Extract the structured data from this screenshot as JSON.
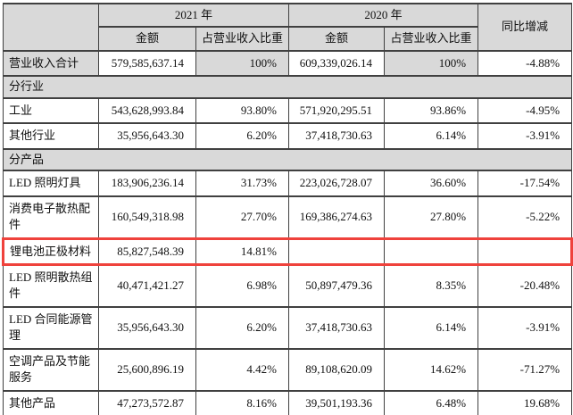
{
  "table": {
    "header": {
      "year_2021": "2021 年",
      "year_2020": "2020 年",
      "amount": "金额",
      "ratio": "占营业收入比重",
      "yoy": "同比增减"
    },
    "rows": [
      {
        "type": "data",
        "label": "营业收入合计",
        "shaded": true,
        "cells": [
          "579,585,637.14",
          "100%",
          "609,339,026.14",
          "100%",
          "-4.88%"
        ]
      },
      {
        "type": "section",
        "label": "分行业"
      },
      {
        "type": "data",
        "label": "工业",
        "cells": [
          "543,628,993.84",
          "93.80%",
          "571,920,295.51",
          "93.86%",
          "-4.95%"
        ]
      },
      {
        "type": "data",
        "label": "其他行业",
        "cells": [
          "35,956,643.30",
          "6.20%",
          "37,418,730.63",
          "6.14%",
          "-3.91%"
        ]
      },
      {
        "type": "section",
        "label": "分产品"
      },
      {
        "type": "data",
        "label": "LED 照明灯具",
        "cells": [
          "183,906,236.14",
          "31.73%",
          "223,026,728.07",
          "36.60%",
          "-17.54%"
        ]
      },
      {
        "type": "data",
        "label": "消费电子散热配件",
        "cells": [
          "160,549,318.98",
          "27.70%",
          "169,386,274.63",
          "27.80%",
          "-5.22%"
        ]
      },
      {
        "type": "data",
        "label": "锂电池正极材料",
        "highlight": true,
        "cells": [
          "85,827,548.39",
          "14.81%",
          "",
          "",
          ""
        ]
      },
      {
        "type": "data",
        "label": "LED 照明散热组件",
        "cells": [
          "40,471,421.27",
          "6.98%",
          "50,897,479.36",
          "8.35%",
          "-20.48%"
        ]
      },
      {
        "type": "data",
        "label": "LED 合同能源管理",
        "cells": [
          "35,956,643.30",
          "6.20%",
          "37,418,730.63",
          "6.14%",
          "-3.91%"
        ]
      },
      {
        "type": "data",
        "label": "空调产品及节能服务",
        "cells": [
          "25,600,896.19",
          "4.42%",
          "89,108,620.09",
          "14.62%",
          "-71.27%"
        ]
      },
      {
        "type": "data",
        "label": "其他产品",
        "cells": [
          "47,273,572.87",
          "8.16%",
          "39,501,193.36",
          "6.48%",
          "19.68%"
        ]
      }
    ]
  },
  "colors": {
    "shade": "#d9d9d9",
    "border": "#404040",
    "highlight": "#ef423c"
  }
}
